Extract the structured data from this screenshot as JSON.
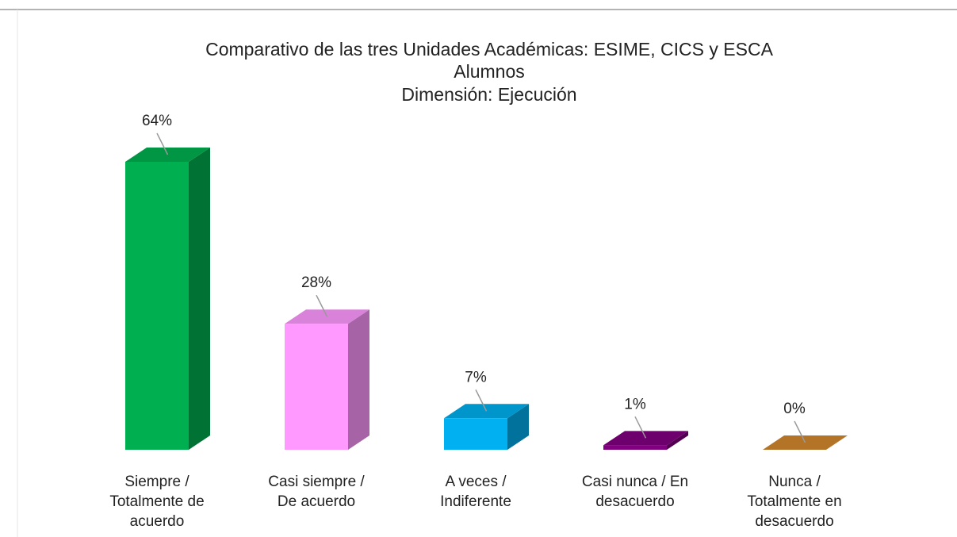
{
  "chart_data": {
    "type": "bar3d",
    "title": "Comparativo de las tres Unidades Académicas: ESIME, CICS y ESCA",
    "subtitle": [
      "Alumnos",
      "Dimensión: Ejecución"
    ],
    "categories": [
      [
        "Siempre /",
        "Totalmente de",
        "acuerdo"
      ],
      [
        "Casi siempre /",
        "De acuerdo"
      ],
      [
        "A veces /",
        "Indiferente"
      ],
      [
        "Casi nunca / En",
        "desacuerdo"
      ],
      [
        "Nunca /",
        "Totalmente en",
        "desacuerdo"
      ]
    ],
    "values": [
      64,
      28,
      7,
      1,
      0
    ],
    "value_labels": [
      "64%",
      "28%",
      "7%",
      "1%",
      "0%"
    ],
    "colors": [
      "#00b050",
      "#ff99ff",
      "#00b0f0",
      "#800080",
      "#d4892e"
    ],
    "ylim": [
      0,
      64
    ]
  }
}
